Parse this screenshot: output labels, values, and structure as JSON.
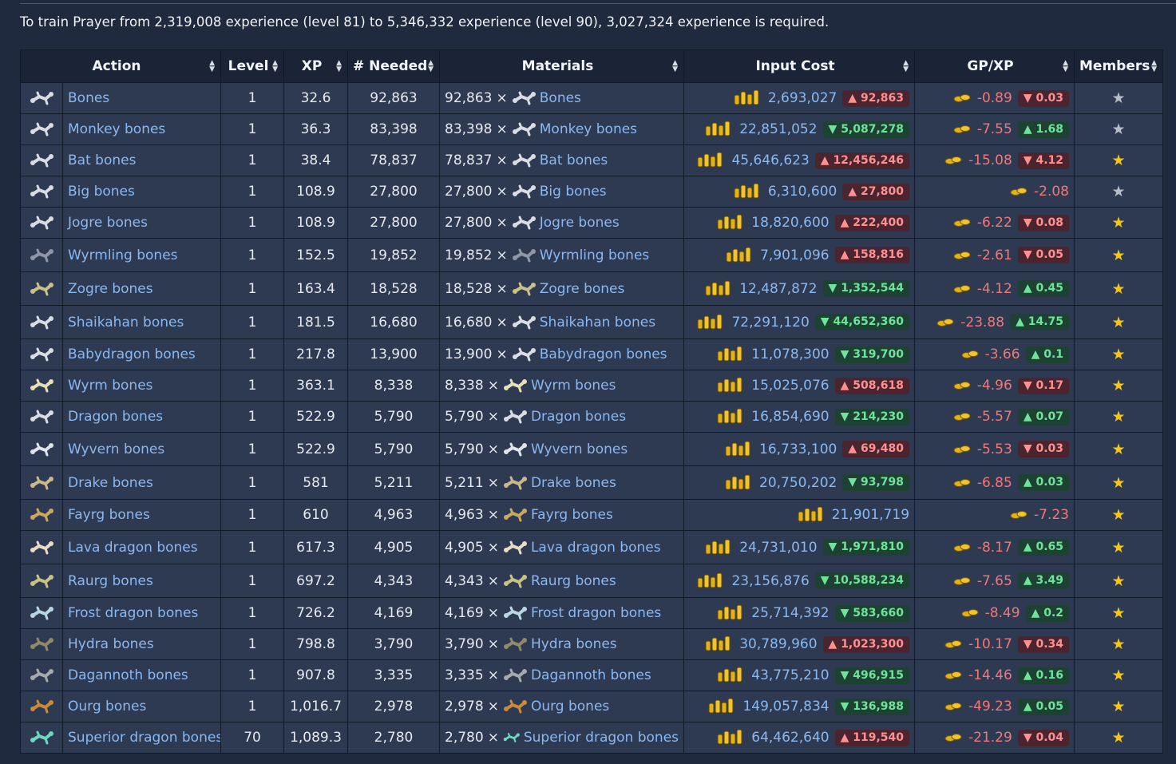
{
  "intro": "To train Prayer from 2,319,008 experience (level 81) to 5,346,332 experience (level 90), 3,027,324 experience is required.",
  "columns": [
    "Action",
    "Level",
    "XP",
    "# Needed",
    "Materials",
    "Input Cost",
    "GP/XP",
    "Members"
  ],
  "times_symbol": "×",
  "rows": [
    {
      "name": "Bones",
      "level": "1",
      "xp": "32.6",
      "needed": "92,863",
      "qty": "92,863",
      "cost": "2,693,027",
      "cost_change": "▲ 92,863",
      "cost_dir": "up",
      "gpxp": "-0.89",
      "gpxp_change": "▼ 0.03",
      "gpxp_dir": "up",
      "members": "f2p",
      "bone_color": "#d9dde3"
    },
    {
      "name": "Monkey bones",
      "level": "1",
      "xp": "36.3",
      "needed": "83,398",
      "qty": "83,398",
      "cost": "22,851,052",
      "cost_change": "▼ 5,087,278",
      "cost_dir": "down",
      "gpxp": "-7.55",
      "gpxp_change": "▲ 1.68",
      "gpxp_dir": "down",
      "members": "f2p",
      "bone_color": "#d9dde3"
    },
    {
      "name": "Bat bones",
      "level": "1",
      "xp": "38.4",
      "needed": "78,837",
      "qty": "78,837",
      "cost": "45,646,623",
      "cost_change": "▲ 12,456,246",
      "cost_dir": "up",
      "gpxp": "-15.08",
      "gpxp_change": "▼ 4.12",
      "gpxp_dir": "up",
      "members": "p2p",
      "bone_color": "#d9dde3"
    },
    {
      "name": "Big bones",
      "level": "1",
      "xp": "108.9",
      "needed": "27,800",
      "qty": "27,800",
      "cost": "6,310,600",
      "cost_change": "▲ 27,800",
      "cost_dir": "up",
      "gpxp": "-2.08",
      "gpxp_change": "",
      "gpxp_dir": "",
      "members": "f2p",
      "bone_color": "#d9dde3"
    },
    {
      "name": "Jogre bones",
      "level": "1",
      "xp": "108.9",
      "needed": "27,800",
      "qty": "27,800",
      "cost": "18,820,600",
      "cost_change": "▲ 222,400",
      "cost_dir": "up",
      "gpxp": "-6.22",
      "gpxp_change": "▼ 0.08",
      "gpxp_dir": "up",
      "members": "p2p",
      "bone_color": "#d9dde3"
    },
    {
      "name": "Wyrmling bones",
      "level": "1",
      "xp": "152.5",
      "needed": "19,852",
      "qty": "19,852",
      "cost": "7,901,096",
      "cost_change": "▲ 158,816",
      "cost_dir": "up",
      "gpxp": "-2.61",
      "gpxp_change": "▼ 0.05",
      "gpxp_dir": "up",
      "members": "p2p",
      "bone_color": "#8f96a8"
    },
    {
      "name": "Zogre bones",
      "level": "1",
      "xp": "163.4",
      "needed": "18,528",
      "qty": "18,528",
      "cost": "12,487,872",
      "cost_change": "▼ 1,352,544",
      "cost_dir": "down",
      "gpxp": "-4.12",
      "gpxp_change": "▲ 0.45",
      "gpxp_dir": "down",
      "members": "p2p",
      "bone_color": "#c9c08a"
    },
    {
      "name": "Shaikahan bones",
      "level": "1",
      "xp": "181.5",
      "needed": "16,680",
      "qty": "16,680",
      "cost": "72,291,120",
      "cost_change": "▼ 44,652,360",
      "cost_dir": "down",
      "gpxp": "-23.88",
      "gpxp_change": "▲ 14.75",
      "gpxp_dir": "down",
      "members": "p2p",
      "bone_color": "#d9dde3"
    },
    {
      "name": "Babydragon bones",
      "level": "1",
      "xp": "217.8",
      "needed": "13,900",
      "qty": "13,900",
      "cost": "11,078,300",
      "cost_change": "▼ 319,700",
      "cost_dir": "down",
      "gpxp": "-3.66",
      "gpxp_change": "▲ 0.1",
      "gpxp_dir": "down",
      "members": "p2p",
      "bone_color": "#d9dde3"
    },
    {
      "name": "Wyrm bones",
      "level": "1",
      "xp": "363.1",
      "needed": "8,338",
      "qty": "8,338",
      "cost": "15,025,076",
      "cost_change": "▲ 508,618",
      "cost_dir": "up",
      "gpxp": "-4.96",
      "gpxp_change": "▼ 0.17",
      "gpxp_dir": "up",
      "members": "p2p",
      "bone_color": "#e6dfb8"
    },
    {
      "name": "Dragon bones",
      "level": "1",
      "xp": "522.9",
      "needed": "5,790",
      "qty": "5,790",
      "cost": "16,854,690",
      "cost_change": "▼ 214,230",
      "cost_dir": "down",
      "gpxp": "-5.57",
      "gpxp_change": "▲ 0.07",
      "gpxp_dir": "down",
      "members": "p2p",
      "bone_color": "#d9dde3"
    },
    {
      "name": "Wyvern bones",
      "level": "1",
      "xp": "522.9",
      "needed": "5,790",
      "qty": "5,790",
      "cost": "16,733,100",
      "cost_change": "▲ 69,480",
      "cost_dir": "up",
      "gpxp": "-5.53",
      "gpxp_change": "▼ 0.03",
      "gpxp_dir": "up",
      "members": "p2p",
      "bone_color": "#e0e3e8"
    },
    {
      "name": "Drake bones",
      "level": "1",
      "xp": "581",
      "needed": "5,211",
      "qty": "5,211",
      "cost": "20,750,202",
      "cost_change": "▼ 93,798",
      "cost_dir": "down",
      "gpxp": "-6.85",
      "gpxp_change": "▲ 0.03",
      "gpxp_dir": "down",
      "members": "p2p",
      "bone_color": "#c9b98a"
    },
    {
      "name": "Fayrg bones",
      "level": "1",
      "xp": "610",
      "needed": "4,963",
      "qty": "4,963",
      "cost": "21,901,719",
      "cost_change": "",
      "cost_dir": "",
      "gpxp": "-7.23",
      "gpxp_change": "",
      "gpxp_dir": "",
      "members": "p2p",
      "bone_color": "#c9a860"
    },
    {
      "name": "Lava dragon bones",
      "level": "1",
      "xp": "617.3",
      "needed": "4,905",
      "qty": "4,905",
      "cost": "24,731,010",
      "cost_change": "▼ 1,971,810",
      "cost_dir": "down",
      "gpxp": "-8.17",
      "gpxp_change": "▲ 0.65",
      "gpxp_dir": "down",
      "members": "p2p",
      "bone_color": "#e8dcc8"
    },
    {
      "name": "Raurg bones",
      "level": "1",
      "xp": "697.2",
      "needed": "4,343",
      "qty": "4,343",
      "cost": "23,156,876",
      "cost_change": "▼ 10,588,234",
      "cost_dir": "down",
      "gpxp": "-7.65",
      "gpxp_change": "▲ 3.49",
      "gpxp_dir": "down",
      "members": "p2p",
      "bone_color": "#c7c483"
    },
    {
      "name": "Frost dragon bones",
      "level": "1",
      "xp": "726.2",
      "needed": "4,169",
      "qty": "4,169",
      "cost": "25,714,392",
      "cost_change": "▼ 583,660",
      "cost_dir": "down",
      "gpxp": "-8.49",
      "gpxp_change": "▲ 0.2",
      "gpxp_dir": "down",
      "members": "p2p",
      "bone_color": "#b9d7e2"
    },
    {
      "name": "Hydra bones",
      "level": "1",
      "xp": "798.8",
      "needed": "3,790",
      "qty": "3,790",
      "cost": "30,789,960",
      "cost_change": "▲ 1,023,300",
      "cost_dir": "up",
      "gpxp": "-10.17",
      "gpxp_change": "▼ 0.34",
      "gpxp_dir": "up",
      "members": "p2p",
      "bone_color": "#8f8a6a"
    },
    {
      "name": "Dagannoth bones",
      "level": "1",
      "xp": "907.8",
      "needed": "3,335",
      "qty": "3,335",
      "cost": "43,775,210",
      "cost_change": "▼ 496,915",
      "cost_dir": "down",
      "gpxp": "-14.46",
      "gpxp_change": "▲ 0.16",
      "gpxp_dir": "down",
      "members": "p2p",
      "bone_color": "#a6a9ad"
    },
    {
      "name": "Ourg bones",
      "level": "1",
      "xp": "1,016.7",
      "needed": "2,978",
      "qty": "2,978",
      "cost": "149,057,834",
      "cost_change": "▼ 136,988",
      "cost_dir": "down",
      "gpxp": "-49.23",
      "gpxp_change": "▲ 0.05",
      "gpxp_dir": "down",
      "members": "p2p",
      "bone_color": "#c98a3a"
    },
    {
      "name": "Superior dragon bones",
      "level": "70",
      "xp": "1,089.3",
      "needed": "2,780",
      "qty": "2,780",
      "cost": "64,462,640",
      "cost_change": "▲ 119,540",
      "cost_dir": "up",
      "gpxp": "-21.29",
      "gpxp_change": "▼ 0.04",
      "gpxp_dir": "up",
      "members": "p2p",
      "bone_color": "#6fd6c0"
    }
  ]
}
